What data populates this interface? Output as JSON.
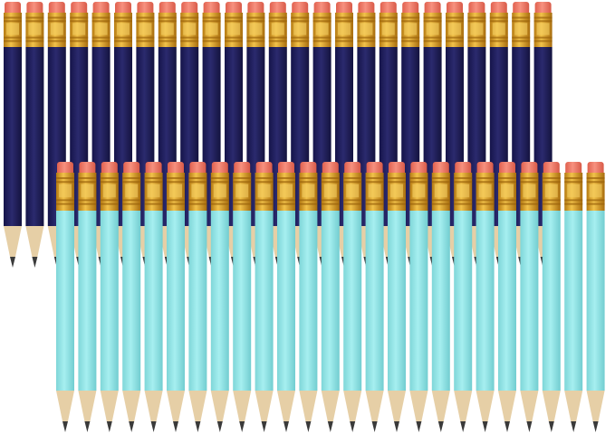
{
  "photo": {
    "subject": "pencil-set",
    "rows": [
      {
        "name": "back-row",
        "count": 25,
        "body_color": "#23225e",
        "eraser_color": "#f07a68",
        "ferrule_color": "#e0a72a",
        "wood_color": "#e6cfa6",
        "lead_color": "#3a3a3a"
      },
      {
        "name": "front-row",
        "count": 25,
        "body_color": "#8fe2e4",
        "eraser_color": "#f07a68",
        "ferrule_color": "#e0a72a",
        "wood_color": "#e6cfa6",
        "lead_color": "#3a3a3a"
      }
    ]
  }
}
